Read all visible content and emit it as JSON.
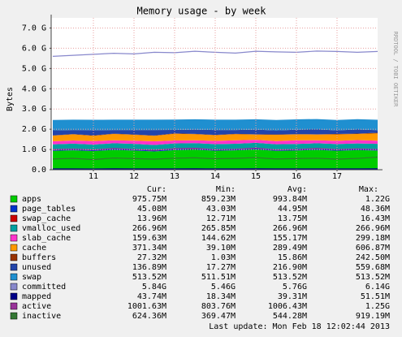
{
  "chart_data": {
    "type": "area",
    "title": "Memory usage - by week",
    "y_label": "Bytes",
    "side_text": "RRDTOOL / TOBI OETIKER",
    "x": [
      10,
      10.5,
      11,
      11.5,
      12,
      12.5,
      13,
      13.5,
      14,
      14.5,
      15,
      15.5,
      16,
      16.5,
      17,
      17.5,
      18
    ],
    "xlim": [
      9.96,
      18
    ],
    "xticks": [
      11,
      12,
      13,
      14,
      15,
      16,
      17
    ],
    "ylim": [
      0,
      7.5
    ],
    "yticks": [
      {
        "value": 0,
        "label": "0.0"
      },
      {
        "value": 1,
        "label": "1.0 G"
      },
      {
        "value": 2,
        "label": "2.0 G"
      },
      {
        "value": 3,
        "label": "3.0 G"
      },
      {
        "value": 4,
        "label": "4.0 G"
      },
      {
        "value": 5,
        "label": "5.0 G"
      },
      {
        "value": 6,
        "label": "6.0 G"
      },
      {
        "value": 7,
        "label": "7.0 G"
      }
    ],
    "grid": true,
    "legend_headers": [
      "Cur:",
      "Min:",
      "Avg:",
      "Max:"
    ],
    "series": [
      {
        "name": "apps",
        "color": "#00cc00",
        "style": "area",
        "cur": "975.75M",
        "min": "859.23M",
        "avg": "993.84M",
        "max": "1.22G",
        "values": [
          0.93,
          0.96,
          0.92,
          0.98,
          0.95,
          0.9,
          0.97,
          0.99,
          0.94,
          0.96,
          1.0,
          0.93,
          0.95,
          0.98,
          0.94,
          0.97,
          0.95
        ]
      },
      {
        "name": "page_tables",
        "color": "#0033cc",
        "style": "area",
        "cur": "45.08M",
        "min": "43.03M",
        "avg": "44.95M",
        "max": "48.36M",
        "values": [
          0.044,
          0.045,
          0.043,
          0.046,
          0.045,
          0.044,
          0.046,
          0.045,
          0.044,
          0.045,
          0.046,
          0.045,
          0.044,
          0.045,
          0.046,
          0.045,
          0.045
        ]
      },
      {
        "name": "swap_cache",
        "color": "#cc0000",
        "style": "area",
        "cur": "13.96M",
        "min": "12.71M",
        "avg": "13.75M",
        "max": "16.43M",
        "values": [
          0.013,
          0.014,
          0.014,
          0.013,
          0.014,
          0.014,
          0.013,
          0.014,
          0.014,
          0.013,
          0.014,
          0.014,
          0.013,
          0.014,
          0.014,
          0.014,
          0.014
        ]
      },
      {
        "name": "vmalloc_used",
        "color": "#00a0a0",
        "style": "area",
        "cur": "266.96M",
        "min": "265.85M",
        "avg": "266.96M",
        "max": "266.96M",
        "values": [
          0.267,
          0.267,
          0.267,
          0.267,
          0.267,
          0.267,
          0.267,
          0.267,
          0.267,
          0.267,
          0.267,
          0.267,
          0.267,
          0.267,
          0.267,
          0.267,
          0.267
        ]
      },
      {
        "name": "slab_cache",
        "color": "#ff33cc",
        "style": "area",
        "cur": "159.63M",
        "min": "144.62M",
        "avg": "155.17M",
        "max": "299.18M",
        "values": [
          0.15,
          0.16,
          0.17,
          0.15,
          0.16,
          0.18,
          0.15,
          0.14,
          0.16,
          0.17,
          0.15,
          0.16,
          0.18,
          0.15,
          0.16,
          0.17,
          0.16
        ]
      },
      {
        "name": "cache",
        "color": "#ff9900",
        "style": "area",
        "cur": "371.34M",
        "min": "39.10M",
        "avg": "289.49M",
        "max": "606.87M",
        "values": [
          0.28,
          0.3,
          0.26,
          0.31,
          0.29,
          0.27,
          0.33,
          0.3,
          0.28,
          0.3,
          0.26,
          0.31,
          0.29,
          0.28,
          0.32,
          0.3,
          0.36
        ]
      },
      {
        "name": "buffers",
        "color": "#993300",
        "style": "area",
        "cur": "27.32M",
        "min": "1.03M",
        "avg": "15.86M",
        "max": "242.50M",
        "values": [
          0.01,
          0.015,
          0.02,
          0.012,
          0.016,
          0.014,
          0.018,
          0.013,
          0.015,
          0.017,
          0.014,
          0.016,
          0.012,
          0.015,
          0.018,
          0.02,
          0.027
        ]
      },
      {
        "name": "unused",
        "color": "#2244aa",
        "style": "area",
        "cur": "136.89M",
        "min": "17.27M",
        "avg": "216.90M",
        "max": "559.68M",
        "values": [
          0.25,
          0.2,
          0.26,
          0.18,
          0.22,
          0.27,
          0.17,
          0.21,
          0.24,
          0.19,
          0.23,
          0.2,
          0.22,
          0.24,
          0.18,
          0.2,
          0.13
        ]
      },
      {
        "name": "swap",
        "color": "#1f8fd0",
        "style": "area",
        "cur": "513.52M",
        "min": "511.51M",
        "avg": "513.52M",
        "max": "513.52M",
        "values": [
          0.512,
          0.513,
          0.513,
          0.513,
          0.512,
          0.513,
          0.513,
          0.513,
          0.513,
          0.512,
          0.513,
          0.513,
          0.513,
          0.513,
          0.513,
          0.513,
          0.513
        ]
      },
      {
        "name": "committed",
        "color": "#8888cc",
        "style": "line",
        "cur": "5.84G",
        "min": "5.46G",
        "avg": "5.76G",
        "max": "6.14G",
        "values": [
          5.6,
          5.65,
          5.7,
          5.75,
          5.72,
          5.8,
          5.78,
          5.85,
          5.8,
          5.76,
          5.85,
          5.82,
          5.8,
          5.86,
          5.84,
          5.8,
          5.84
        ]
      },
      {
        "name": "mapped",
        "color": "#000088",
        "style": "line",
        "cur": "43.74M",
        "min": "18.34M",
        "avg": "39.31M",
        "max": "51.51M",
        "values": [
          0.04,
          0.042,
          0.038,
          0.044,
          0.041,
          0.039,
          0.043,
          0.045,
          0.04,
          0.042,
          0.044,
          0.04,
          0.041,
          0.043,
          0.04,
          0.042,
          0.044
        ]
      },
      {
        "name": "active",
        "color": "#993399",
        "style": "line",
        "cur": "1001.63M",
        "min": "803.76M",
        "avg": "1006.43M",
        "max": "1.25G",
        "values": [
          1.0,
          1.02,
          0.98,
          1.05,
          1.0,
          0.97,
          1.04,
          1.06,
          0.99,
          1.01,
          1.07,
          0.98,
          1.0,
          1.05,
          1.0,
          1.03,
          1.0
        ]
      },
      {
        "name": "inactive",
        "color": "#337733",
        "style": "line",
        "cur": "624.36M",
        "min": "369.47M",
        "avg": "544.28M",
        "max": "919.19M",
        "values": [
          0.53,
          0.56,
          0.5,
          0.58,
          0.55,
          0.52,
          0.57,
          0.59,
          0.54,
          0.56,
          0.6,
          0.53,
          0.55,
          0.57,
          0.52,
          0.56,
          0.62
        ]
      }
    ],
    "last_update": "Last update:  Mon Feb 18 12:02:44 2013"
  }
}
